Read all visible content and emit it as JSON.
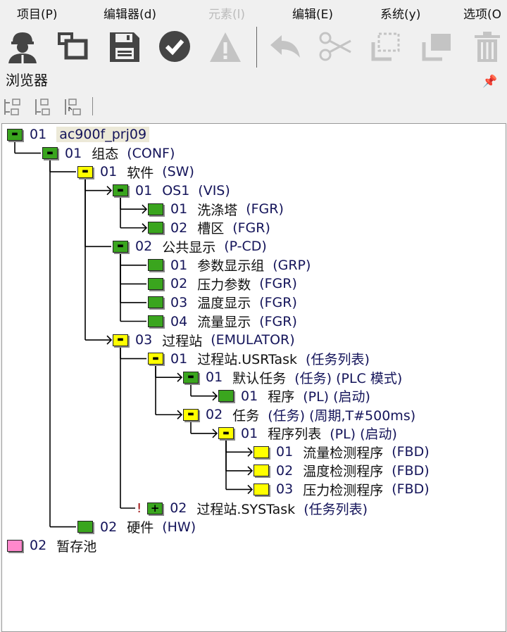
{
  "menu": [
    {
      "label": "项目(P)",
      "enabled": true
    },
    {
      "label": "编辑器(d)",
      "enabled": true
    },
    {
      "label": "元素(l)",
      "enabled": false
    },
    {
      "label": "编辑(E)",
      "enabled": true
    },
    {
      "label": "系统(y)",
      "enabled": true
    },
    {
      "label": "选项(O",
      "enabled": true
    }
  ],
  "toolbar": [
    "user-icon",
    "window-icon",
    "save-icon",
    "check-icon",
    "warning-icon",
    "undo-icon",
    "cut-icon",
    "select-icon",
    "copy-icon",
    "delete-icon"
  ],
  "panel": {
    "title": "浏览器",
    "pin": "ᅲ"
  },
  "colors": {
    "green": "#3aa51e",
    "yellow": "#ffff00",
    "pink": "#ff88cc"
  },
  "tree": [
    {
      "depth": 0,
      "num": "01",
      "name": "ac900f_prj09",
      "code": "",
      "color": "green",
      "exp": "−",
      "highlight": true
    },
    {
      "depth": 1,
      "num": "01",
      "name": "组态",
      "code": "(CONF)",
      "color": "green",
      "exp": "−",
      "parent": 0
    },
    {
      "depth": 2,
      "num": "01",
      "name": "软件",
      "code": "(SW)",
      "color": "yellow",
      "exp": "−",
      "parent": 1
    },
    {
      "depth": 3,
      "num": "01",
      "name": "OS1",
      "code": "(VIS)",
      "color": "green",
      "exp": "−",
      "parent": 2,
      "arrow": true
    },
    {
      "depth": 4,
      "num": "01",
      "name": "洗涤塔",
      "code": "(FGR)",
      "color": "green",
      "exp": "",
      "parent": 3,
      "arrow": true
    },
    {
      "depth": 4,
      "num": "02",
      "name": "槽区",
      "code": "(FGR)",
      "color": "green",
      "exp": "",
      "parent": 3,
      "arrow": true
    },
    {
      "depth": 3,
      "num": "02",
      "name": "公共显示",
      "code": "(P-CD)",
      "color": "green",
      "exp": "−",
      "parent": 2
    },
    {
      "depth": 4,
      "num": "01",
      "name": "参数显示组",
      "code": "(GRP)",
      "color": "green",
      "exp": "",
      "parent": 6
    },
    {
      "depth": 4,
      "num": "02",
      "name": "压力参数",
      "code": "(FGR)",
      "color": "green",
      "exp": "",
      "parent": 6
    },
    {
      "depth": 4,
      "num": "03",
      "name": "温度显示",
      "code": "(FGR)",
      "color": "green",
      "exp": "",
      "parent": 6
    },
    {
      "depth": 4,
      "num": "04",
      "name": "流量显示",
      "code": "(FGR)",
      "color": "green",
      "exp": "",
      "parent": 6
    },
    {
      "depth": 3,
      "num": "03",
      "name": "过程站",
      "code": "(EMULATOR)",
      "color": "yellow",
      "exp": "−",
      "parent": 2,
      "arrow": true
    },
    {
      "depth": 4,
      "num": "01",
      "name": "过程站.USRTask",
      "code": "(任务列表)",
      "color": "yellow",
      "exp": "−",
      "parent": 11
    },
    {
      "depth": 5,
      "num": "01",
      "name": "默认任务",
      "code": "(任务) (PLC 模式)",
      "color": "green",
      "exp": "−",
      "parent": 12,
      "arrow": true
    },
    {
      "depth": 6,
      "num": "01",
      "name": "程序",
      "code": "(PL) (启动)",
      "color": "green",
      "exp": "",
      "parent": 13,
      "arrow": true
    },
    {
      "depth": 5,
      "num": "02",
      "name": "任务",
      "code": "(任务) (周期,T#500ms)",
      "color": "yellow",
      "exp": "−",
      "parent": 12,
      "arrow": true
    },
    {
      "depth": 6,
      "num": "01",
      "name": "程序列表",
      "code": "(PL) (启动)",
      "color": "yellow",
      "exp": "−",
      "parent": 15,
      "arrow": true
    },
    {
      "depth": 7,
      "num": "01",
      "name": "流量检测程序",
      "code": "(FBD)",
      "color": "yellow",
      "exp": "",
      "parent": 16,
      "arrow": true
    },
    {
      "depth": 7,
      "num": "02",
      "name": "温度检测程序",
      "code": "(FBD)",
      "color": "yellow",
      "exp": "",
      "parent": 16,
      "arrow": true
    },
    {
      "depth": 7,
      "num": "03",
      "name": "压力检测程序",
      "code": "(FBD)",
      "color": "yellow",
      "exp": "",
      "parent": 16,
      "arrow": true
    },
    {
      "depth": 4,
      "num": "02",
      "name": "过程站.SYSTask",
      "code": "(任务列表)",
      "color": "green",
      "exp": "+",
      "parent": 11,
      "bang": "!"
    },
    {
      "depth": 2,
      "num": "02",
      "name": "硬件",
      "code": "(HW)",
      "color": "green",
      "exp": "",
      "parent": 1
    },
    {
      "depth": 0,
      "num": "02",
      "name": "暂存池",
      "code": "",
      "color": "pink",
      "exp": ""
    }
  ]
}
